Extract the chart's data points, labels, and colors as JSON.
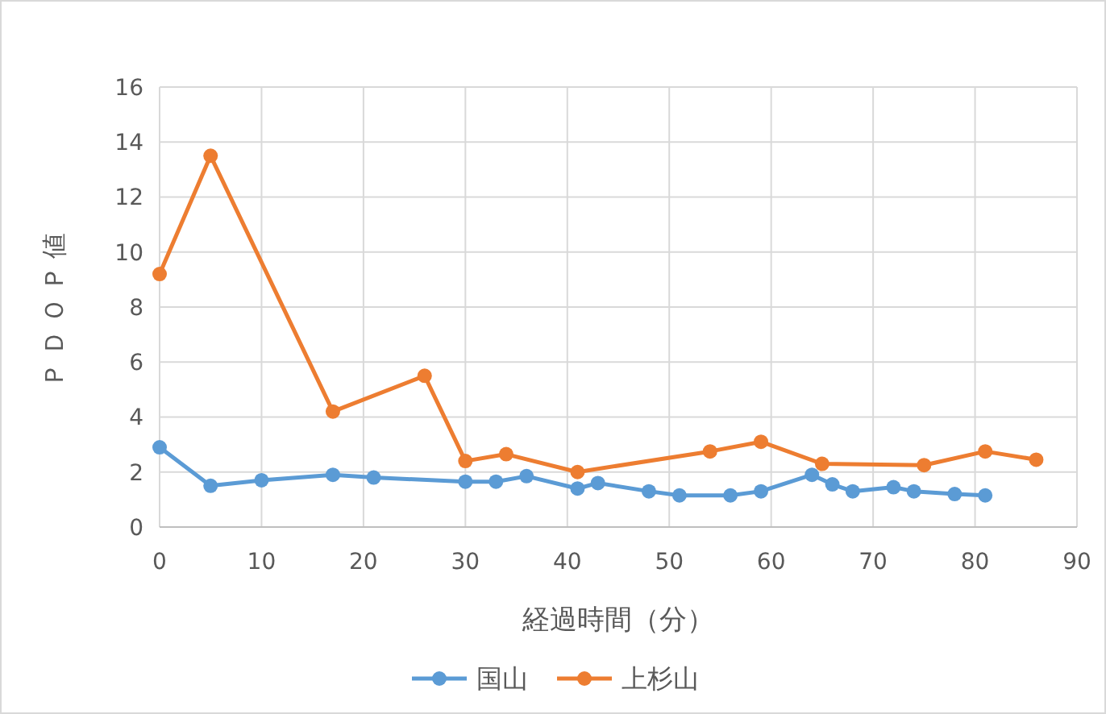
{
  "chart_data": {
    "type": "line",
    "xlabel": "経過時間（分）",
    "ylabel": "ＰＤＯＰ値",
    "xlim": [
      0,
      90
    ],
    "xticks": [
      0,
      10,
      20,
      30,
      40,
      50,
      60,
      70,
      80,
      90
    ],
    "ylim": [
      0,
      16
    ],
    "yticks": [
      0,
      2,
      4,
      6,
      8,
      10,
      12,
      14,
      16
    ],
    "grid": true,
    "legend": "bottom",
    "marker": "circle",
    "line_style": "solid",
    "series": [
      {
        "name": "国山",
        "color": "#5b9bd5",
        "x": [
          0,
          5,
          10,
          17,
          21,
          30,
          33,
          36,
          41,
          43,
          48,
          51,
          56,
          59,
          64,
          66,
          68,
          72,
          74,
          78,
          81
        ],
        "values": [
          2.9,
          1.5,
          1.7,
          1.9,
          1.8,
          1.65,
          1.65,
          1.85,
          1.4,
          1.6,
          1.3,
          1.15,
          1.15,
          1.3,
          1.9,
          1.55,
          1.3,
          1.45,
          1.3,
          1.2,
          1.15
        ]
      },
      {
        "name": "上杉山",
        "color": "#ed7d31",
        "x": [
          0,
          5,
          17,
          26,
          30,
          34,
          41,
          54,
          59,
          65,
          75,
          81,
          86
        ],
        "values": [
          9.2,
          13.5,
          4.2,
          5.5,
          2.4,
          2.65,
          2.0,
          2.75,
          3.1,
          2.3,
          2.25,
          2.75,
          2.45
        ]
      }
    ]
  }
}
